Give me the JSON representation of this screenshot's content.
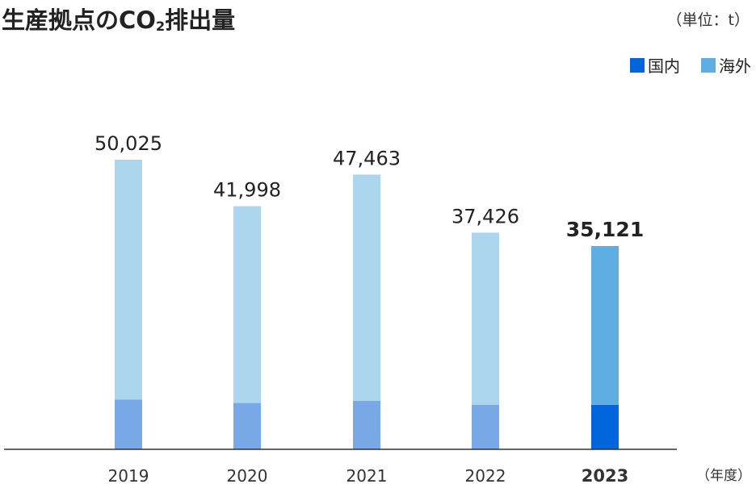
{
  "title_main": "生産拠点のCO",
  "title_sub": "2",
  "title_tail": "排出量",
  "unit": "（単位：t）",
  "legend": [
    {
      "label": "国内",
      "color": "#0066d9"
    },
    {
      "label": "海外",
      "color": "#5faee3"
    }
  ],
  "x_unit": "（年度）",
  "chart_data": {
    "type": "bar",
    "stacked": true,
    "title": "生産拠点のCO2排出量",
    "unit": "（単位：t）",
    "xlabel": "（年度）",
    "categories": [
      "2019",
      "2020",
      "2021",
      "2022",
      "2023"
    ],
    "totals": [
      50025,
      41998,
      47463,
      37426,
      35121
    ],
    "total_labels": [
      "50,025",
      "41,998",
      "47,463",
      "37,426",
      "35,121"
    ],
    "series": [
      {
        "name": "国内",
        "values": [
          8600,
          8000,
          8400,
          7700,
          7700
        ]
      },
      {
        "name": "海外",
        "values": [
          41425,
          33998,
          39063,
          29726,
          27421
        ]
      }
    ],
    "highlight_index": 4,
    "colors": {
      "domestic": "#0066d9",
      "overseas": "#5faee3",
      "domestic_past": "#78a9e6",
      "overseas_past": "#acd5ee",
      "axis": "#333333"
    },
    "ylim": [
      0,
      50025
    ]
  }
}
